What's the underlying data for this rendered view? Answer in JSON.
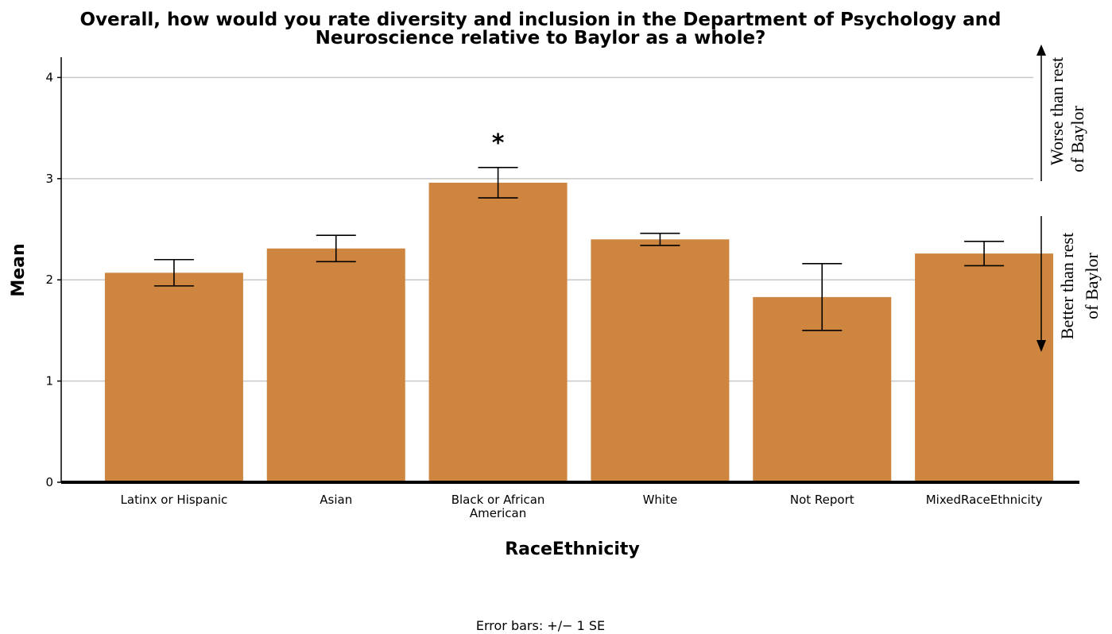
{
  "chart_data": {
    "type": "bar",
    "title_lines": [
      "Overall, how would you rate diversity and inclusion in the Department of Psychology and",
      "Neuroscience relative to Baylor as a whole?"
    ],
    "categories": [
      [
        "Latinx or Hispanic"
      ],
      [
        "Asian"
      ],
      [
        "Black or African",
        "American"
      ],
      [
        "White"
      ],
      [
        "Not Report"
      ],
      [
        "MixedRaceEthnicity"
      ]
    ],
    "values": [
      2.07,
      2.31,
      2.96,
      2.4,
      1.83,
      2.26
    ],
    "se": [
      0.13,
      0.13,
      0.15,
      0.06,
      0.33,
      0.12
    ],
    "ylim": [
      0,
      4.2
    ],
    "yticks": [
      "0",
      "1",
      "2",
      "3",
      "4"
    ],
    "xlabel": "RaceEthnicity",
    "ylabel": "Mean",
    "grid": true,
    "bar_color": "#cd853f",
    "annotation": {
      "text": "*",
      "category_index": 2
    },
    "side_notes": {
      "upper": [
        "Worse than rest",
        "of Baylor"
      ],
      "lower": [
        "Better than rest",
        "of Baylor"
      ]
    },
    "footnote": "Error bars: +/− 1 SE"
  }
}
